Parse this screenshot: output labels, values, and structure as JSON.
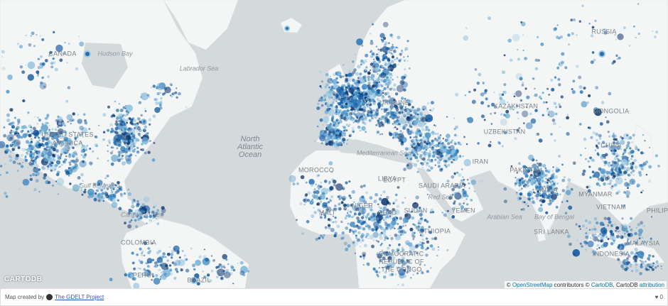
{
  "map_labels": [
    "CANADA",
    "Hudson Bay",
    "Labrador Sea",
    "UNITED STATES",
    "AMERICA",
    "Gulf of Mexico",
    "Caribbean Sea",
    "COLOMBIA",
    "PERU",
    "BRAZIL",
    "North",
    "Atlantic",
    "Ocean",
    "MOROCCO",
    "LIBYA",
    "EGYPT",
    "SAUDI ARABIA",
    "SUDAN",
    "YEMEN",
    "ETHIOPIA",
    "DEMOCRATIC",
    "REPUBLIC OF",
    "THE CONGO",
    "Mediterranean Sea",
    "Red Sea",
    "Arabian Sea",
    "Bay of Bengal",
    "IRAN",
    "PAKISTAN",
    "INDIA",
    "MYANMAR",
    "VIETNAM",
    "SRI LANKA",
    "MALAYSIA",
    "INDONESIA",
    "PHILIP",
    "CHINA",
    "MONGOLIA",
    "KAZAKHSTAN",
    "UZBEKISTAN",
    "RUSSIA",
    "UKRAINE",
    "MALI",
    "NIGER",
    "CHAD"
  ],
  "logo": "CARTODB",
  "attribution": {
    "copy1": "©",
    "osm": "OpenStreetMap",
    "mid": "contributors ©",
    "carto": "CartoDB",
    "sep": ", CartoDB",
    "attr": "attribution"
  },
  "footer": {
    "created": "Map created by",
    "project": "The GDELT Project",
    "count": "0"
  }
}
